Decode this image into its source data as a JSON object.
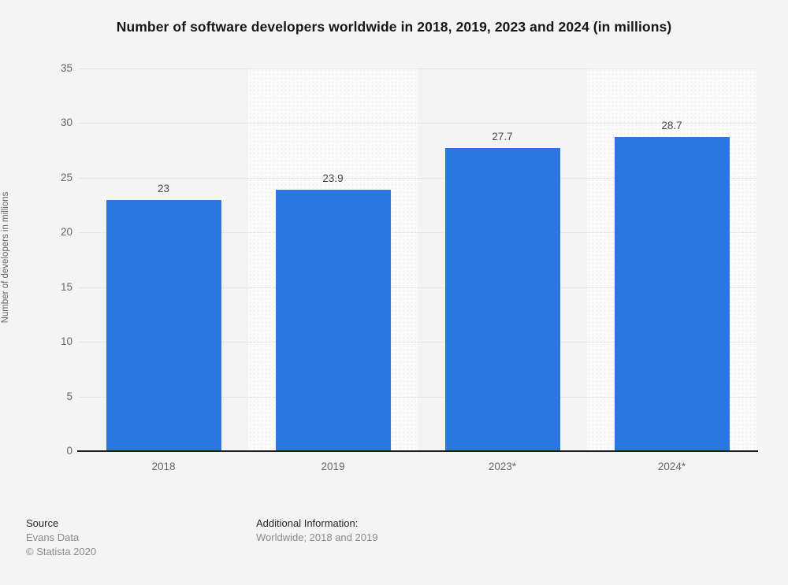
{
  "chart_data": {
    "type": "bar",
    "title": "Number of software developers worldwide in 2018, 2019, 2023 and 2024 (in millions)",
    "categories": [
      "2018",
      "2019",
      "2023*",
      "2024*"
    ],
    "values": [
      23,
      23.9,
      27.7,
      28.7
    ],
    "value_labels": [
      "23",
      "23.9",
      "27.7",
      "28.7"
    ],
    "xlabel": "",
    "ylabel": "Number of developers in millions",
    "ylim": [
      0,
      35
    ],
    "yticks": [
      0,
      5,
      10,
      15,
      20,
      25,
      30,
      35
    ],
    "grid": "dotted horizontal",
    "legend": "none",
    "bar_color": "#2a77de",
    "band_alternate_color": "#fbfbfb",
    "background_color": "#f4f4f4"
  },
  "footer": {
    "source_label": "Source",
    "source_value": "Evans Data",
    "copyright": "© Statista 2020",
    "additional_label": "Additional Information:",
    "additional_value": "Worldwide; 2018 and 2019"
  }
}
